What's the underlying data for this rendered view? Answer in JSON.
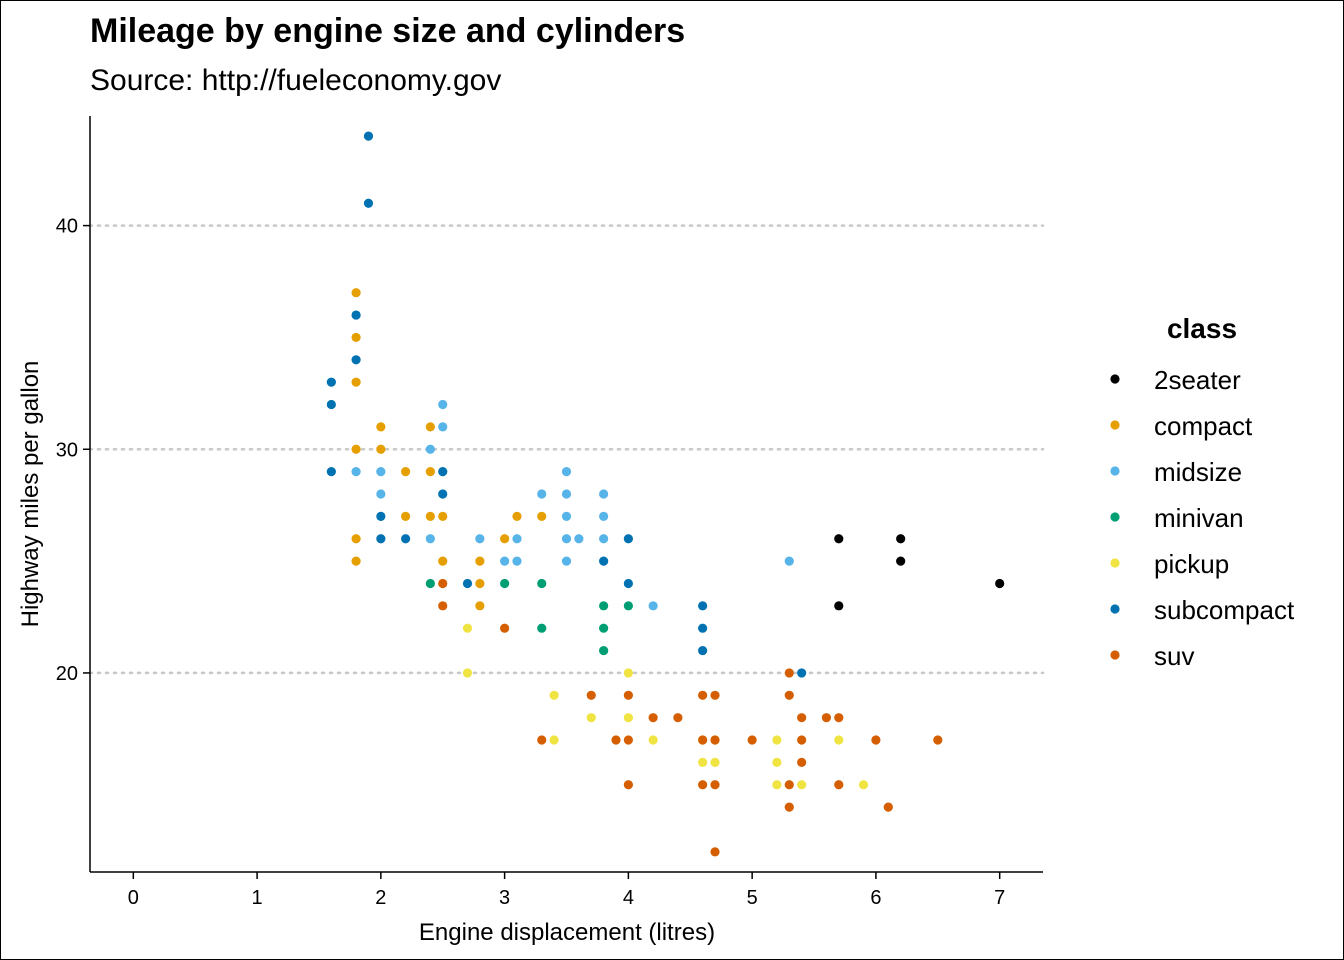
{
  "chart_data": {
    "type": "scatter",
    "title": "Mileage by engine size and cylinders",
    "subtitle": "Source: http://fueleconomy.gov",
    "xlabel": "Engine displacement (litres)",
    "ylabel": "Highway miles per gallon",
    "xlim": [
      -0.35,
      7.35
    ],
    "ylim": [
      11.1,
      44.9
    ],
    "xticks": [
      0,
      1,
      2,
      3,
      4,
      5,
      6,
      7
    ],
    "yticks": [
      20,
      30,
      40
    ],
    "grid": "horizontal dotted at y ticks",
    "legend": {
      "title": "class",
      "placement": "right"
    },
    "series": [
      {
        "name": "2seater",
        "color": "#000000",
        "points": [
          [
            5.7,
            26
          ],
          [
            5.7,
            23
          ],
          [
            6.2,
            26
          ],
          [
            6.2,
            25
          ],
          [
            7.0,
            24
          ]
        ]
      },
      {
        "name": "compact",
        "color": "#E69F00",
        "points": [
          [
            1.8,
            37
          ],
          [
            1.8,
            35
          ],
          [
            1.8,
            33
          ],
          [
            1.8,
            30
          ],
          [
            1.8,
            26
          ],
          [
            1.8,
            25
          ],
          [
            2.0,
            31
          ],
          [
            2.0,
            30
          ],
          [
            2.2,
            29
          ],
          [
            2.2,
            27
          ],
          [
            2.4,
            31
          ],
          [
            2.4,
            29
          ],
          [
            2.4,
            27
          ],
          [
            2.5,
            27
          ],
          [
            2.5,
            25
          ],
          [
            2.8,
            25
          ],
          [
            2.8,
            24
          ],
          [
            2.8,
            23
          ],
          [
            3.0,
            26
          ],
          [
            3.1,
            27
          ],
          [
            3.3,
            27
          ]
        ]
      },
      {
        "name": "midsize",
        "color": "#56B4E9",
        "points": [
          [
            1.8,
            29
          ],
          [
            2.0,
            29
          ],
          [
            2.0,
            28
          ],
          [
            2.4,
            30
          ],
          [
            2.4,
            26
          ],
          [
            2.5,
            32
          ],
          [
            2.5,
            31
          ],
          [
            2.8,
            26
          ],
          [
            3.0,
            25
          ],
          [
            3.1,
            26
          ],
          [
            3.1,
            25
          ],
          [
            3.3,
            28
          ],
          [
            3.5,
            29
          ],
          [
            3.5,
            28
          ],
          [
            3.5,
            27
          ],
          [
            3.5,
            26
          ],
          [
            3.5,
            25
          ],
          [
            3.6,
            26
          ],
          [
            3.8,
            28
          ],
          [
            3.8,
            27
          ],
          [
            3.8,
            26
          ],
          [
            4.2,
            23
          ],
          [
            5.3,
            25
          ]
        ]
      },
      {
        "name": "minivan",
        "color": "#009E73",
        "points": [
          [
            2.4,
            24
          ],
          [
            3.0,
            24
          ],
          [
            3.3,
            24
          ],
          [
            3.3,
            22
          ],
          [
            3.8,
            23
          ],
          [
            3.8,
            22
          ],
          [
            3.8,
            21
          ],
          [
            4.0,
            23
          ]
        ]
      },
      {
        "name": "pickup",
        "color": "#F0E442",
        "points": [
          [
            2.7,
            22
          ],
          [
            2.7,
            20
          ],
          [
            3.4,
            19
          ],
          [
            3.4,
            17
          ],
          [
            3.7,
            18
          ],
          [
            4.0,
            20
          ],
          [
            4.0,
            18
          ],
          [
            4.2,
            17
          ],
          [
            4.6,
            17
          ],
          [
            4.6,
            16
          ],
          [
            4.7,
            17
          ],
          [
            4.7,
            16
          ],
          [
            5.2,
            17
          ],
          [
            5.2,
            16
          ],
          [
            5.2,
            15
          ],
          [
            5.4,
            15
          ],
          [
            5.7,
            17
          ],
          [
            5.9,
            15
          ]
        ]
      },
      {
        "name": "subcompact",
        "color": "#0072B2",
        "points": [
          [
            1.6,
            33
          ],
          [
            1.6,
            32
          ],
          [
            1.6,
            29
          ],
          [
            1.8,
            36
          ],
          [
            1.8,
            34
          ],
          [
            1.9,
            44
          ],
          [
            1.9,
            41
          ],
          [
            2.0,
            27
          ],
          [
            2.0,
            26
          ],
          [
            2.2,
            26
          ],
          [
            2.5,
            29
          ],
          [
            2.5,
            28
          ],
          [
            2.7,
            24
          ],
          [
            3.8,
            25
          ],
          [
            4.0,
            26
          ],
          [
            4.0,
            24
          ],
          [
            4.6,
            23
          ],
          [
            4.6,
            22
          ],
          [
            4.6,
            21
          ],
          [
            5.4,
            20
          ]
        ]
      },
      {
        "name": "suv",
        "color": "#D55E00",
        "points": [
          [
            2.5,
            24
          ],
          [
            2.5,
            23
          ],
          [
            3.0,
            22
          ],
          [
            3.3,
            17
          ],
          [
            3.7,
            19
          ],
          [
            3.9,
            17
          ],
          [
            4.0,
            19
          ],
          [
            4.0,
            17
          ],
          [
            4.0,
            15
          ],
          [
            4.2,
            18
          ],
          [
            4.4,
            18
          ],
          [
            4.6,
            19
          ],
          [
            4.6,
            17
          ],
          [
            4.6,
            15
          ],
          [
            4.7,
            19
          ],
          [
            4.7,
            17
          ],
          [
            4.7,
            15
          ],
          [
            4.7,
            12
          ],
          [
            5.0,
            17
          ],
          [
            5.3,
            20
          ],
          [
            5.3,
            19
          ],
          [
            5.3,
            15
          ],
          [
            5.3,
            14
          ],
          [
            5.4,
            18
          ],
          [
            5.4,
            17
          ],
          [
            5.4,
            16
          ],
          [
            5.6,
            18
          ],
          [
            5.7,
            18
          ],
          [
            5.7,
            15
          ],
          [
            6.0,
            17
          ],
          [
            6.1,
            14
          ],
          [
            6.5,
            17
          ]
        ]
      }
    ]
  }
}
